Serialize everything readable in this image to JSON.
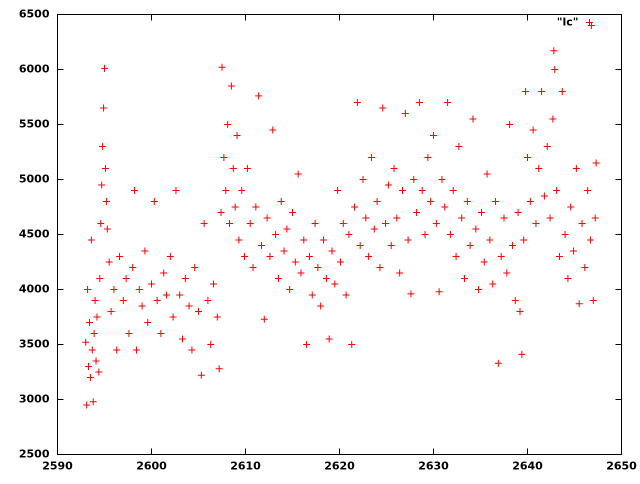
{
  "chart_data": {
    "type": "scatter",
    "xlim": [
      2590,
      2650
    ],
    "ylim": [
      2500,
      6500
    ],
    "xticks": [
      2590,
      2600,
      2610,
      2620,
      2630,
      2640,
      2650
    ],
    "yticks": [
      2500,
      3000,
      3500,
      4000,
      4500,
      5000,
      5500,
      6000,
      6500
    ],
    "legend": "top-right",
    "series": [
      {
        "name": "\"lc\"",
        "color": "#ff0000",
        "x": [
          2593.0,
          2593.1,
          2593.2,
          2593.3,
          2593.4,
          2593.5,
          2593.6,
          2593.7,
          2593.8,
          2593.9,
          2594.0,
          2594.1,
          2594.2,
          2594.4,
          2594.5,
          2594.6,
          2594.7,
          2594.8,
          2594.9,
          2595.0,
          2595.1,
          2595.2,
          2595.3,
          2595.5,
          2595.7,
          2596.0,
          2596.3,
          2596.6,
          2597.0,
          2597.3,
          2597.6,
          2598.0,
          2598.2,
          2598.4,
          2598.7,
          2599.0,
          2599.3,
          2599.6,
          2600.0,
          2600.3,
          2600.6,
          2601.0,
          2601.3,
          2601.6,
          2602.0,
          2602.3,
          2602.6,
          2603.0,
          2603.3,
          2603.6,
          2604.0,
          2604.3,
          2604.6,
          2605.0,
          2605.3,
          2605.6,
          2606.0,
          2606.3,
          2606.6,
          2607.0,
          2607.2,
          2607.4,
          2607.5,
          2607.7,
          2607.9,
          2608.1,
          2608.3,
          2608.5,
          2608.7,
          2608.9,
          2609.1,
          2609.3,
          2609.6,
          2609.9,
          2610.2,
          2610.5,
          2610.8,
          2611.1,
          2611.4,
          2611.7,
          2612.0,
          2612.3,
          2612.6,
          2612.9,
          2613.2,
          2613.5,
          2613.8,
          2614.1,
          2614.4,
          2614.7,
          2615.0,
          2615.3,
          2615.6,
          2615.9,
          2616.2,
          2616.5,
          2616.8,
          2617.1,
          2617.4,
          2617.7,
          2618.0,
          2618.3,
          2618.6,
          2618.9,
          2619.2,
          2619.5,
          2619.8,
          2620.1,
          2620.4,
          2620.7,
          2621.0,
          2621.3,
          2621.6,
          2621.9,
          2622.2,
          2622.5,
          2622.8,
          2623.1,
          2623.4,
          2623.7,
          2624.0,
          2624.3,
          2624.6,
          2624.9,
          2625.2,
          2625.5,
          2625.8,
          2626.1,
          2626.4,
          2626.7,
          2627.0,
          2627.3,
          2627.6,
          2627.9,
          2628.2,
          2628.5,
          2628.8,
          2629.1,
          2629.4,
          2629.7,
          2630.0,
          2630.3,
          2630.6,
          2630.9,
          2631.2,
          2631.5,
          2631.8,
          2632.1,
          2632.4,
          2632.7,
          2633.0,
          2633.3,
          2633.6,
          2633.9,
          2634.2,
          2634.5,
          2634.8,
          2635.1,
          2635.4,
          2635.7,
          2636.0,
          2636.3,
          2636.6,
          2636.9,
          2637.2,
          2637.5,
          2637.8,
          2638.1,
          2638.4,
          2638.7,
          2639.0,
          2639.2,
          2639.4,
          2639.6,
          2639.8,
          2640.0,
          2640.3,
          2640.6,
          2640.9,
          2641.2,
          2641.5,
          2641.8,
          2642.1,
          2642.4,
          2642.7,
          2642.8,
          2642.9,
          2643.1,
          2643.4,
          2643.7,
          2644.0,
          2644.3,
          2644.6,
          2644.9,
          2645.2,
          2645.5,
          2645.8,
          2646.1,
          2646.4,
          2646.7,
          2646.8,
          2647.0,
          2647.2,
          2647.3
        ],
        "values": [
          3520,
          2950,
          4000,
          3300,
          3700,
          3200,
          4450,
          3450,
          2980,
          3600,
          3900,
          3350,
          3750,
          3250,
          4100,
          4600,
          4950,
          5300,
          5650,
          6010,
          5100,
          4800,
          4550,
          4250,
          3800,
          4000,
          3450,
          4300,
          3900,
          4100,
          3600,
          4200,
          4900,
          3450,
          4000,
          3850,
          4350,
          3700,
          4050,
          4800,
          3900,
          3600,
          4150,
          3950,
          4300,
          3750,
          4900,
          3950,
          3550,
          4100,
          3850,
          3450,
          4200,
          3800,
          3220,
          4600,
          3900,
          3500,
          4050,
          3750,
          3280,
          4700,
          6020,
          5200,
          4900,
          5500,
          4600,
          5850,
          5100,
          4750,
          5400,
          4450,
          4900,
          4300,
          5100,
          4600,
          4200,
          4750,
          5760,
          4400,
          3730,
          4650,
          4300,
          5450,
          4500,
          4100,
          4800,
          4350,
          4550,
          4000,
          4700,
          4250,
          5050,
          4150,
          4450,
          3500,
          4300,
          3950,
          4600,
          4200,
          3850,
          4450,
          4100,
          3550,
          4350,
          4050,
          4900,
          4250,
          4600,
          3950,
          4500,
          3500,
          4750,
          5700,
          4400,
          5000,
          4650,
          4300,
          5200,
          4550,
          4800,
          4200,
          5650,
          4600,
          4950,
          4400,
          5100,
          4650,
          4150,
          4900,
          5600,
          4450,
          3960,
          5000,
          4700,
          5700,
          4900,
          4500,
          5200,
          4800,
          5400,
          4600,
          3980,
          5000,
          4750,
          5700,
          4500,
          4900,
          4300,
          5300,
          4650,
          4100,
          4800,
          4400,
          5550,
          4550,
          4000,
          4700,
          4250,
          5050,
          4450,
          4050,
          4800,
          3330,
          4300,
          4650,
          4150,
          5500,
          4400,
          3900,
          4700,
          3800,
          3410,
          4450,
          5800,
          5200,
          4800,
          5450,
          4600,
          5100,
          5800,
          4850,
          5300,
          4650,
          5550,
          6170,
          6000,
          4900,
          4300,
          5800,
          4500,
          4100,
          4750,
          4350,
          5100,
          3870,
          4600,
          4200,
          4900,
          4450,
          6400,
          3900,
          4650,
          5150
        ]
      }
    ]
  }
}
